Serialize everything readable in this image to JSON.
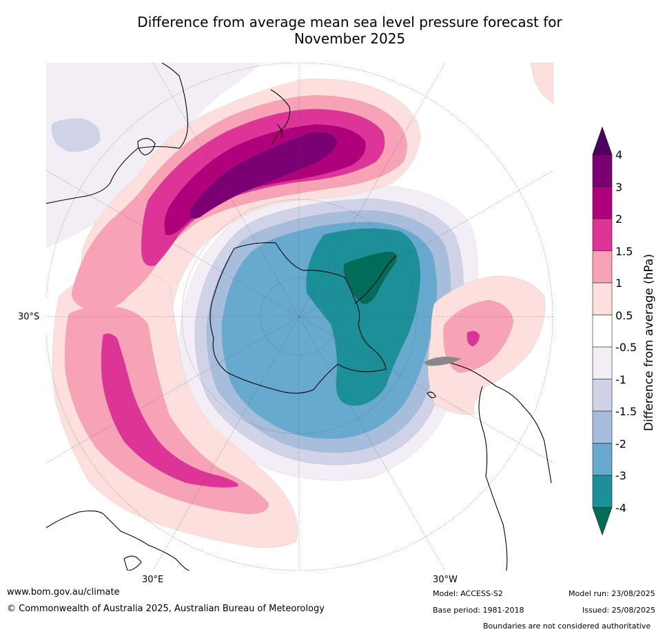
{
  "title": {
    "line1": "Difference from average mean sea level pressure forecast for",
    "line2": "November 2025"
  },
  "map_labels": {
    "lat_30s": "30°S",
    "lon_30e": "30°E",
    "lon_30w": "30°W"
  },
  "colorbar": {
    "title": "Difference from average (hPa)",
    "ticks": [
      "4",
      "3",
      "2",
      "1.5",
      "1",
      "0.5",
      "-0.5",
      "-1",
      "-1.5",
      "-2",
      "-3",
      "-4"
    ],
    "colors": {
      "gt4": "#4d0062",
      "c3_4": "#7a0073",
      "c2_3": "#b0007a",
      "c15_2": "#dd3497",
      "c1_15": "#f8a2b6",
      "c05_1": "#fde0dd",
      "neutral": "#ffffff",
      "m1_m05": "#f3eef5",
      "m15_m1": "#d0d3e7",
      "m2_m15": "#a6bddb",
      "m3_m2": "#67a9cf",
      "m4_m3": "#1c9099",
      "lt_m4": "#016c59"
    }
  },
  "footer": {
    "url": "www.bom.gov.au/climate",
    "copyright": "© Commonwealth of Australia 2025, Australian Bureau of Meteorology",
    "model": "Model: ACCESS-S2",
    "base_period": "Base period: 1981-2018",
    "model_run": "Model run: 23/08/2025",
    "issued": "Issued: 25/08/2025",
    "disclaimer": "Boundaries are not considered authoritative"
  }
}
